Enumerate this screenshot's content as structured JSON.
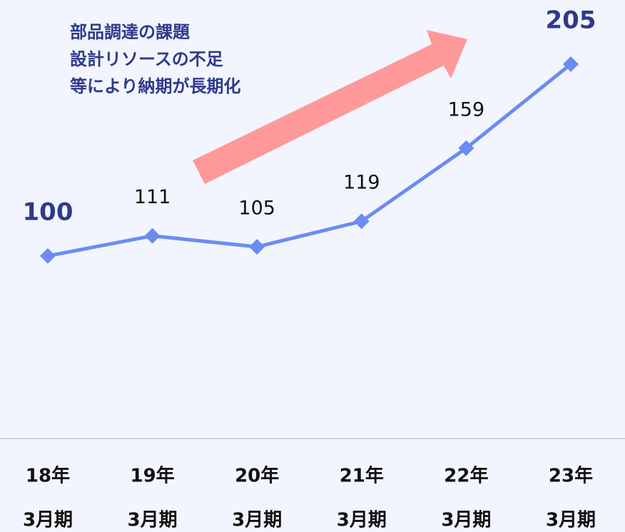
{
  "chart_data": {
    "type": "line",
    "annotation": [
      "部品調達の課題",
      "設計リソースの不足",
      "等により納期が長期化"
    ],
    "categories": [
      [
        "18年",
        "3月期"
      ],
      [
        "19年",
        "3月期"
      ],
      [
        "20年",
        "3月期"
      ],
      [
        "21年",
        "3月期"
      ],
      [
        "22年",
        "3月期"
      ],
      [
        "23年",
        "3月期"
      ]
    ],
    "values": [
      100,
      111,
      105,
      119,
      159,
      205
    ],
    "color": "#6b8cf0"
  }
}
